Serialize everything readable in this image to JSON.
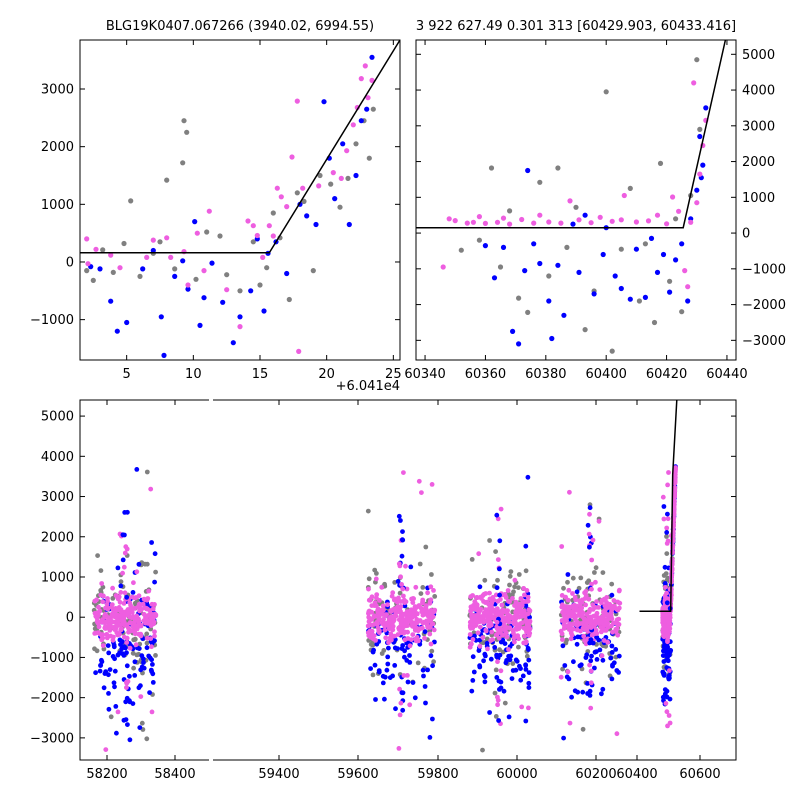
{
  "chart_data": [
    {
      "type": "scatter",
      "title": "BLG19K0407.067266 (3940.02, 6994.55)",
      "xlim": [
        1.5,
        25.5
      ],
      "ylim": [
        -1700,
        3850
      ],
      "x_offset_label": "+6.041e4",
      "xticks": [
        5,
        10,
        15,
        20,
        25
      ],
      "xtick_labels": [
        "5",
        "10",
        "15",
        "20",
        "25"
      ],
      "yticks": [
        -1000,
        0,
        1000,
        2000,
        3000
      ],
      "ytick_labels": [
        "−1000",
        "0",
        "1000",
        "2000",
        "3000"
      ],
      "grid": false,
      "model": {
        "x": [
          1.5,
          15.7,
          25.5
        ],
        "y": [
          160,
          160,
          3850
        ]
      },
      "series": [
        {
          "color": "#808080",
          "points": [
            [
              2,
              -150
            ],
            [
              2.5,
              -320
            ],
            [
              3.2,
              210
            ],
            [
              4,
              -180
            ],
            [
              4.8,
              320
            ],
            [
              5.3,
              1060
            ],
            [
              6,
              -250
            ],
            [
              7,
              150
            ],
            [
              7.5,
              350
            ],
            [
              8,
              1420
            ],
            [
              8.6,
              -120
            ],
            [
              9.2,
              1720
            ],
            [
              9.3,
              2450
            ],
            [
              9.5,
              2250
            ],
            [
              10.2,
              -300
            ],
            [
              11,
              520
            ],
            [
              12,
              450
            ],
            [
              12.5,
              -220
            ],
            [
              13.5,
              -500
            ],
            [
              14.5,
              350
            ],
            [
              15,
              -400
            ],
            [
              15.5,
              -100
            ],
            [
              16,
              850
            ],
            [
              16.5,
              420
            ],
            [
              17.2,
              -650
            ],
            [
              17.8,
              1200
            ],
            [
              18.3,
              1050
            ],
            [
              19,
              -150
            ],
            [
              19.5,
              1500
            ],
            [
              20.3,
              1350
            ],
            [
              21,
              950
            ],
            [
              21.6,
              1450
            ],
            [
              22.2,
              2050
            ],
            [
              22.8,
              2450
            ],
            [
              23.2,
              1800
            ],
            [
              23.5,
              2650
            ]
          ]
        },
        {
          "color": "#0000ff",
          "points": [
            [
              2.3,
              -80
            ],
            [
              3,
              -120
            ],
            [
              3.8,
              -680
            ],
            [
              4.3,
              -1200
            ],
            [
              5,
              -1050
            ],
            [
              6.2,
              -120
            ],
            [
              7,
              200
            ],
            [
              7.6,
              -950
            ],
            [
              7.8,
              -1620
            ],
            [
              8.6,
              -250
            ],
            [
              9.2,
              20
            ],
            [
              9.6,
              -470
            ],
            [
              10.1,
              700
            ],
            [
              10.5,
              -1100
            ],
            [
              10.8,
              -620
            ],
            [
              11.4,
              -20
            ],
            [
              12.2,
              -700
            ],
            [
              13,
              -1400
            ],
            [
              13.5,
              -950
            ],
            [
              14.3,
              -500
            ],
            [
              14.8,
              400
            ],
            [
              15.3,
              -850
            ],
            [
              15.6,
              150
            ],
            [
              16.2,
              350
            ],
            [
              17,
              -200
            ],
            [
              18,
              1000
            ],
            [
              18.5,
              800
            ],
            [
              19.2,
              650
            ],
            [
              19.8,
              2780
            ],
            [
              20.2,
              1800
            ],
            [
              20.6,
              1100
            ],
            [
              21.2,
              2050
            ],
            [
              21.7,
              650
            ],
            [
              22.2,
              1500
            ],
            [
              22.6,
              2450
            ],
            [
              23,
              2650
            ],
            [
              23.4,
              3550
            ]
          ]
        },
        {
          "color": "#ee5ee0",
          "points": [
            [
              2,
              400
            ],
            [
              2.1,
              -30
            ],
            [
              2.7,
              220
            ],
            [
              3.8,
              120
            ],
            [
              4.5,
              -100
            ],
            [
              6.5,
              80
            ],
            [
              7,
              380
            ],
            [
              8,
              420
            ],
            [
              8.3,
              80
            ],
            [
              9.3,
              180
            ],
            [
              9.6,
              -400
            ],
            [
              10.3,
              500
            ],
            [
              10.8,
              -150
            ],
            [
              11.2,
              880
            ],
            [
              12.5,
              -480
            ],
            [
              13.5,
              -1120
            ],
            [
              14.1,
              710
            ],
            [
              14.5,
              630
            ],
            [
              14.8,
              460
            ],
            [
              15.2,
              80
            ],
            [
              15.7,
              630
            ],
            [
              16,
              450
            ],
            [
              16.3,
              1280
            ],
            [
              16.6,
              1130
            ],
            [
              17,
              960
            ],
            [
              17.4,
              1820
            ],
            [
              17.8,
              2790
            ],
            [
              17.9,
              -1550
            ],
            [
              18.2,
              1280
            ],
            [
              19.4,
              1320
            ],
            [
              20.5,
              1550
            ],
            [
              21.1,
              1450
            ],
            [
              21.5,
              1930
            ],
            [
              22,
              2380
            ],
            [
              22.3,
              2680
            ],
            [
              22.6,
              3180
            ],
            [
              22.9,
              3400
            ],
            [
              23.1,
              2850
            ],
            [
              23.4,
              3150
            ]
          ]
        }
      ]
    },
    {
      "type": "scatter",
      "title": "3 922 627.49 0.301 313 [60429.903, 60433.416]",
      "xlim": [
        60337,
        60443
      ],
      "ylim": [
        -3550,
        5400
      ],
      "xticks": [
        60340,
        60360,
        60380,
        60400,
        60420,
        60440
      ],
      "xtick_labels": [
        "60340",
        "60360",
        "60380",
        "60400",
        "60420",
        "60440"
      ],
      "yticks": [
        -3000,
        -2000,
        -1000,
        0,
        1000,
        2000,
        3000,
        4000,
        5000
      ],
      "ytick_labels": [
        "−3000",
        "−2000",
        "−1000",
        "0",
        "1000",
        "2000",
        "3000",
        "4000",
        "5000"
      ],
      "grid": false,
      "model": {
        "x": [
          60337,
          60425.5,
          60439.5
        ],
        "y": [
          150,
          150,
          5400
        ]
      },
      "series": [
        {
          "color": "#808080",
          "points": [
            [
              60352,
              -480
            ],
            [
              60358,
              -200
            ],
            [
              60362,
              1820
            ],
            [
              60365,
              -950
            ],
            [
              60368,
              620
            ],
            [
              60371,
              -1820
            ],
            [
              60374,
              -2220
            ],
            [
              60378,
              1420
            ],
            [
              60381,
              -1200
            ],
            [
              60384,
              1820
            ],
            [
              60387,
              -400
            ],
            [
              60390,
              720
            ],
            [
              60393,
              -2700
            ],
            [
              60396,
              -1620
            ],
            [
              60400,
              3950
            ],
            [
              60402,
              -3300
            ],
            [
              60405,
              -450
            ],
            [
              60408,
              1250
            ],
            [
              60411,
              -1900
            ],
            [
              60413,
              -300
            ],
            [
              60416,
              -2500
            ],
            [
              60418,
              1950
            ],
            [
              60421,
              -1350
            ],
            [
              60423,
              400
            ],
            [
              60425,
              -2200
            ],
            [
              60428,
              1050
            ],
            [
              60430,
              4850
            ],
            [
              60431,
              2900
            ]
          ]
        },
        {
          "color": "#0000ff",
          "points": [
            [
              60360,
              -350
            ],
            [
              60363,
              -1250
            ],
            [
              60366,
              -400
            ],
            [
              60369,
              -2750
            ],
            [
              60371,
              -3100
            ],
            [
              60373,
              -1050
            ],
            [
              60374,
              1750
            ],
            [
              60376,
              -300
            ],
            [
              60378,
              -850
            ],
            [
              60381,
              -1900
            ],
            [
              60382,
              -2950
            ],
            [
              60384,
              -900
            ],
            [
              60386,
              -2300
            ],
            [
              60389,
              250
            ],
            [
              60391,
              -1100
            ],
            [
              60393,
              500
            ],
            [
              60396,
              -1700
            ],
            [
              60399,
              -600
            ],
            [
              60400,
              150
            ],
            [
              60403,
              -1200
            ],
            [
              60405,
              -1550
            ],
            [
              60408,
              -1850
            ],
            [
              60410,
              -450
            ],
            [
              60413,
              -1800
            ],
            [
              60415,
              -150
            ],
            [
              60417,
              -1100
            ],
            [
              60419,
              -600
            ],
            [
              60421,
              -1650
            ],
            [
              60423,
              -750
            ],
            [
              60425,
              -300
            ],
            [
              60427,
              -1900
            ],
            [
              60428,
              400
            ],
            [
              60430,
              1200
            ],
            [
              60431,
              2700
            ],
            [
              60431.5,
              1550
            ],
            [
              60432,
              1900
            ],
            [
              60433,
              3500
            ]
          ]
        },
        {
          "color": "#ee5ee0",
          "points": [
            [
              60346,
              -950
            ],
            [
              60348,
              400
            ],
            [
              60350,
              350
            ],
            [
              60354,
              280
            ],
            [
              60356,
              300
            ],
            [
              60358,
              460
            ],
            [
              60360,
              270
            ],
            [
              60364,
              300
            ],
            [
              60366,
              420
            ],
            [
              60368,
              250
            ],
            [
              60372,
              380
            ],
            [
              60376,
              280
            ],
            [
              60378,
              500
            ],
            [
              60381,
              310
            ],
            [
              60385,
              280
            ],
            [
              60388,
              900
            ],
            [
              60391,
              370
            ],
            [
              60395,
              290
            ],
            [
              60398,
              440
            ],
            [
              60402,
              330
            ],
            [
              60405,
              370
            ],
            [
              60406,
              1050
            ],
            [
              60410,
              310
            ],
            [
              60414,
              340
            ],
            [
              60417,
              500
            ],
            [
              60420,
              260
            ],
            [
              60422,
              1010
            ],
            [
              60424,
              610
            ],
            [
              60426,
              -1050
            ],
            [
              60427,
              -1500
            ],
            [
              60428,
              300
            ],
            [
              60429,
              4200
            ],
            [
              60430,
              850
            ],
            [
              60431,
              1650
            ],
            [
              60432,
              2450
            ],
            [
              60433,
              3150
            ]
          ]
        }
      ]
    },
    {
      "type": "scatter",
      "title": "",
      "xlim": [
        58130,
        60680
      ],
      "ylim": [
        -3550,
        5400
      ],
      "xticks": [
        58200,
        58400,
        59400,
        59600,
        59800,
        60000,
        60200,
        60400,
        60600
      ],
      "xtick_labels": [
        "58200",
        "58400",
        "59400",
        "59600",
        "59800",
        "60000",
        "60200",
        "60400",
        "60600"
      ],
      "yticks": [
        -3000,
        -2000,
        -1000,
        0,
        1000,
        2000,
        3000,
        4000,
        5000
      ],
      "ytick_labels": [
        "−3000",
        "−2000",
        "−1000",
        "0",
        "1000",
        "2000",
        "3000",
        "4000",
        "5000"
      ],
      "grid": false,
      "axis_break": true,
      "model": {
        "x": [
          60305,
          60426,
          60434,
          60450
        ],
        "y": [
          150,
          150,
          3550,
          5400
        ]
      },
      "seasons": [
        {
          "x": [
            58185,
            58425
          ],
          "cx": 58305
        },
        {
          "x": [
            59250,
            59510
          ],
          "cx": 59380
        },
        {
          "x": [
            59645,
            59880
          ],
          "cx": 59760
        },
        {
          "x": [
            60000,
            60230
          ],
          "cx": 60115
        },
        {
          "x": [
            60395,
            60445
          ],
          "cx": 60420
        }
      ],
      "series": [
        {
          "color": "#808080",
          "spread": 1250,
          "count": 420
        },
        {
          "color": "#0000ff",
          "spread": 1050,
          "count": 520
        },
        {
          "color": "#ee5ee0",
          "spread": 480,
          "count": 1300
        }
      ]
    }
  ]
}
